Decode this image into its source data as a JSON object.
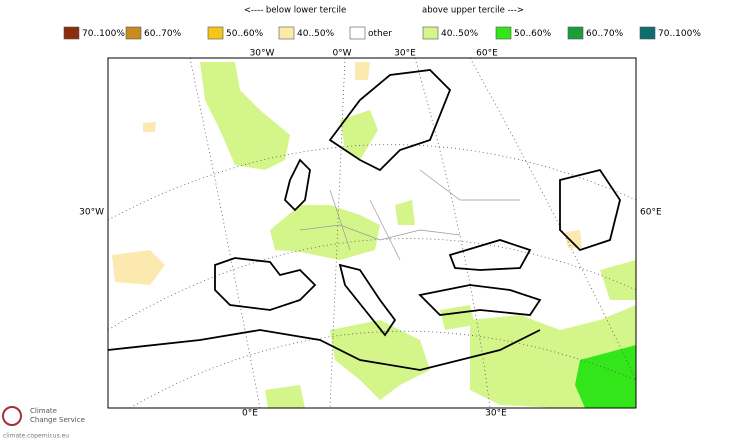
{
  "legend": {
    "below_label": "<---- below lower tercile",
    "above_label": "above upper tercile --->",
    "items": [
      {
        "label": "70..100%",
        "color": "#8b2c0c"
      },
      {
        "label": "60..70%",
        "color": "#c98a1e"
      },
      {
        "label": "50..60%",
        "color": "#f5c518"
      },
      {
        "label": "40..50%",
        "color": "#fdeaa8"
      },
      {
        "label": "other",
        "color": "#ffffff"
      },
      {
        "label": "40..50%",
        "color": "#d8f58c"
      },
      {
        "label": "50..60%",
        "color": "#33e61a"
      },
      {
        "label": "60..70%",
        "color": "#1a9e3a"
      },
      {
        "label": "70..100%",
        "color": "#0d6e6e"
      }
    ]
  },
  "graticule_labels": {
    "top": [
      "30°W",
      "0°W",
      "30°E",
      "60°E"
    ],
    "left": "30°W",
    "right": "60°E",
    "bottom": [
      "0°E",
      "30°E"
    ]
  },
  "logo": {
    "line1": "Climate",
    "line2": "Change Service",
    "url": "climate.copernicus.eu"
  }
}
